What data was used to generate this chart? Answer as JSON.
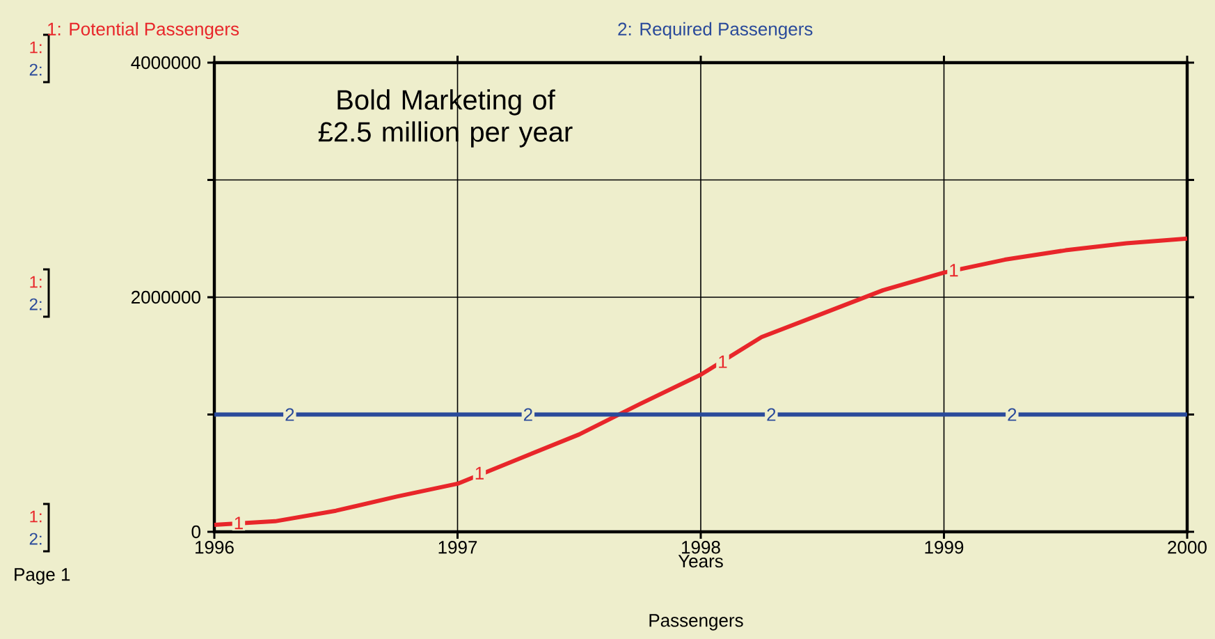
{
  "chart_data": {
    "type": "line",
    "xlabel": "Years",
    "x": [
      1996,
      1996.25,
      1996.5,
      1996.75,
      1997,
      1997.25,
      1997.5,
      1997.75,
      1998,
      1998.25,
      1998.5,
      1998.75,
      1999,
      1999.25,
      1999.5,
      1999.75,
      2000
    ],
    "series": [
      {
        "name": "1: Potential  Passengers",
        "color": "#e8262a",
        "values": [
          60000,
          90000,
          180000,
          300000,
          410000,
          620000,
          830000,
          1090000,
          1340000,
          1660000,
          1860000,
          2060000,
          2210000,
          2320000,
          2400000,
          2460000,
          2500000
        ]
      },
      {
        "name": "2: Required Passengers",
        "color": "#2a4a9a",
        "values": [
          1000000,
          1000000,
          1000000,
          1000000,
          1000000,
          1000000,
          1000000,
          1000000,
          1000000,
          1000000,
          1000000,
          1000000,
          1000000,
          1000000,
          1000000,
          1000000,
          1000000
        ]
      }
    ],
    "xlim": [
      1996,
      2000
    ],
    "ylim": [
      0,
      4000000
    ],
    "xticks": [
      1996,
      1997,
      1998,
      1999,
      2000
    ],
    "yticks": [
      0,
      {
        "value": 1000000,
        "label": null
      },
      2000000,
      {
        "value": 3000000,
        "label": null
      },
      4000000
    ],
    "grid": true,
    "legend": "top",
    "line_style": "solid",
    "marker": "none",
    "annotations": [
      "Bold Marketing of £2.5 million per year",
      "Page 1",
      "Passengers",
      "1:",
      "2:",
      "1:",
      "2:",
      "1:",
      "2:",
      {
        "text": "1",
        "x": 1996.1,
        "y": 75000
      },
      {
        "text": "1",
        "x": 1997.09,
        "y": 500000
      },
      {
        "text": "1",
        "x": 1998.09,
        "y": 1450000
      },
      {
        "text": "1",
        "x": 1999.04,
        "y": 2230000
      },
      {
        "text": "2",
        "x": 1996.31,
        "y": 1000000
      },
      {
        "text": "2",
        "x": 1997.29,
        "y": 1000000
      },
      {
        "text": "2",
        "x": 1998.29,
        "y": 1000000
      },
      {
        "text": "2",
        "x": 1999.28,
        "y": 1000000
      }
    ]
  }
}
